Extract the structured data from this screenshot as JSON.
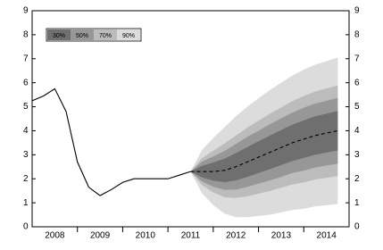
{
  "chart_data": {
    "type": "fan",
    "xlim": [
      2008,
      2015
    ],
    "xticks": [
      {
        "value": 2008.5,
        "label": "2008"
      },
      {
        "value": 2009.5,
        "label": "2009"
      },
      {
        "value": 2010.5,
        "label": "2010"
      },
      {
        "value": 2011.5,
        "label": "2011"
      },
      {
        "value": 2012.5,
        "label": "2012"
      },
      {
        "value": 2013.5,
        "label": "2013"
      },
      {
        "value": 2014.5,
        "label": "2014"
      }
    ],
    "ylim": [
      0,
      9
    ],
    "yticks": [
      0,
      1,
      2,
      3,
      4,
      5,
      6,
      7,
      8,
      9
    ],
    "y2lim": [
      0,
      9
    ],
    "y2ticks": [
      0,
      1,
      2,
      3,
      4,
      5,
      6,
      7,
      8,
      9
    ],
    "history": {
      "color": "#000000",
      "x": [
        2008.0,
        2008.25,
        2008.5,
        2008.75,
        2009.0,
        2009.25,
        2009.5,
        2009.75,
        2010.0,
        2010.25,
        2010.5,
        2010.75,
        2011.0,
        2011.25,
        2011.5
      ],
      "values": [
        5.25,
        5.45,
        5.75,
        4.8,
        2.7,
        1.65,
        1.3,
        1.55,
        1.85,
        2.0,
        2.0,
        2.0,
        2.0,
        2.15,
        2.3
      ]
    },
    "forecast": {
      "color": "#000000",
      "x": [
        2011.5,
        2011.75,
        2012.0,
        2012.25,
        2012.5,
        2012.75,
        2013.0,
        2013.25,
        2013.5,
        2013.75,
        2014.0,
        2014.25,
        2014.5,
        2014.75
      ],
      "values": [
        2.3,
        2.3,
        2.3,
        2.35,
        2.5,
        2.7,
        2.9,
        3.1,
        3.3,
        3.5,
        3.65,
        3.8,
        3.9,
        4.0
      ]
    },
    "bands": [
      {
        "name": "30%",
        "color": "#6f6f6f",
        "lower": [
          2.3,
          2.06,
          1.92,
          1.86,
          1.93,
          2.08,
          2.24,
          2.4,
          2.57,
          2.74,
          2.87,
          3.0,
          3.09,
          3.18
        ],
        "upper": [
          2.3,
          2.54,
          2.68,
          2.84,
          3.07,
          3.32,
          3.56,
          3.8,
          4.03,
          4.26,
          4.43,
          4.6,
          4.71,
          4.82
        ]
      },
      {
        "name": "50%",
        "color": "#979797",
        "lower": [
          2.3,
          1.89,
          1.67,
          1.54,
          1.55,
          1.66,
          1.8,
          1.93,
          2.08,
          2.24,
          2.34,
          2.47,
          2.55,
          2.63
        ],
        "upper": [
          2.3,
          2.71,
          2.93,
          3.16,
          3.45,
          3.74,
          4.0,
          4.27,
          4.52,
          4.76,
          4.96,
          5.13,
          5.25,
          5.37
        ]
      },
      {
        "name": "70%",
        "color": "#bcbcbc",
        "lower": [
          2.3,
          1.74,
          1.43,
          1.23,
          1.2,
          1.27,
          1.38,
          1.49,
          1.63,
          1.76,
          1.85,
          1.97,
          2.04,
          2.11
        ],
        "upper": [
          2.3,
          2.86,
          3.17,
          3.47,
          3.8,
          4.13,
          4.42,
          4.71,
          4.97,
          5.24,
          5.45,
          5.63,
          5.76,
          5.89
        ]
      },
      {
        "name": "90%",
        "color": "#dcdcdc",
        "lower": [
          2.3,
          1.4,
          0.9,
          0.55,
          0.4,
          0.4,
          0.45,
          0.5,
          0.6,
          0.7,
          0.75,
          0.85,
          0.9,
          0.95
        ],
        "upper": [
          2.3,
          3.2,
          3.7,
          4.15,
          4.6,
          5.0,
          5.35,
          5.7,
          6.0,
          6.3,
          6.55,
          6.75,
          6.9,
          7.05
        ]
      }
    ]
  }
}
